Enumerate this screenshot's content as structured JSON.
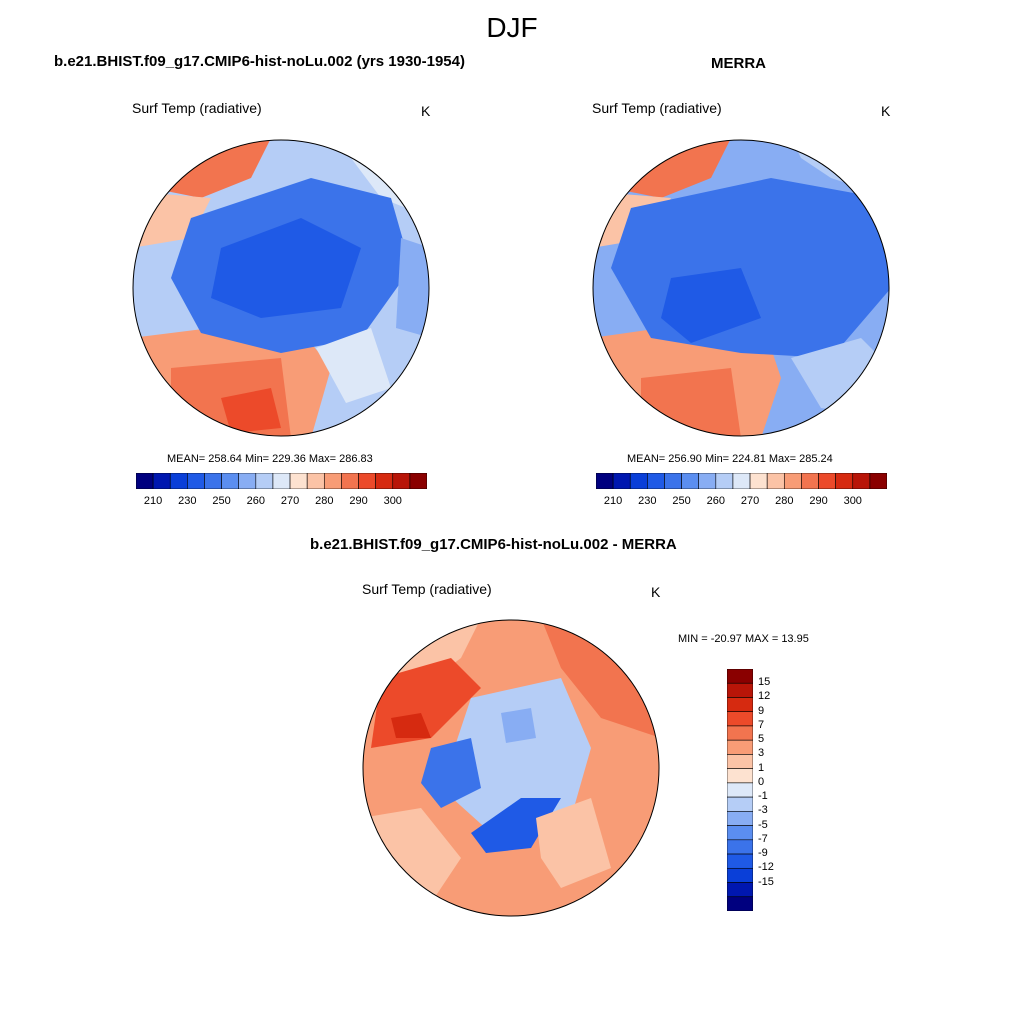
{
  "title": "DJF",
  "colormap": [
    "#00007f",
    "#0017b0",
    "#0a3fd8",
    "#1f5ae6",
    "#3b73ea",
    "#5b8ef0",
    "#88adf3",
    "#b5cdf6",
    "#dde8f8",
    "#fde2d0",
    "#fbc3a6",
    "#f89c76",
    "#f2744f",
    "#ec4a2a",
    "#d62a10",
    "#b81508",
    "#8a0000"
  ],
  "panels": [
    {
      "title": "b.e21.BHIST.f09_g17.CMIP6-hist-noLu.002 (yrs 1930-1954)",
      "variable": "Surf Temp (radiative)",
      "units": "K",
      "stats": "MEAN= 258.64  Min= 229.36  Max= 286.83",
      "colorbar_labels": [
        "210",
        "230",
        "250",
        "260",
        "270",
        "280",
        "290",
        "300"
      ]
    },
    {
      "title": "MERRA",
      "variable": "Surf Temp (radiative)",
      "units": "K",
      "stats": "MEAN= 256.90  Min= 224.81  Max= 285.24",
      "colorbar_labels": [
        "210",
        "230",
        "250",
        "260",
        "270",
        "280",
        "290",
        "300"
      ]
    },
    {
      "title": "b.e21.BHIST.f09_g17.CMIP6-hist-noLu.002 - MERRA",
      "variable": "Surf Temp (radiative)",
      "units": "K",
      "stats": "MIN = -20.97 MAX =  13.95",
      "colorbar_labels": [
        "15",
        "12",
        "9",
        "7",
        "5",
        "3",
        "1",
        "0",
        "-1",
        "-3",
        "-5",
        "-7",
        "-9",
        "-12",
        "-15"
      ]
    }
  ]
}
